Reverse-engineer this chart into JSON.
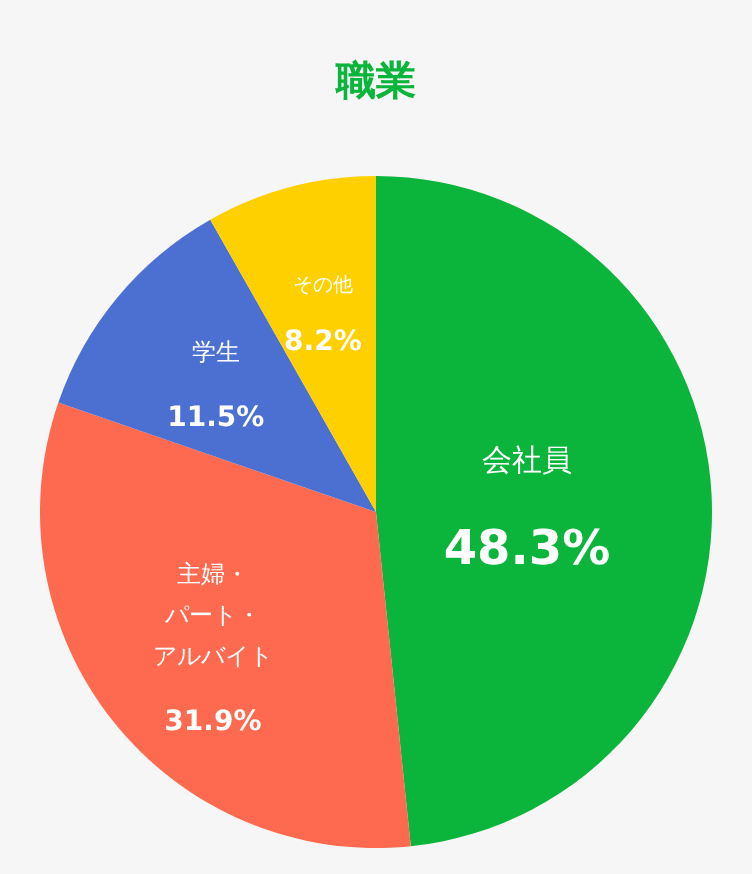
{
  "chart_data": {
    "type": "pie",
    "title": "職業",
    "categories": [
      "会社員",
      "主婦・パート・アルバイト",
      "学生",
      "その他"
    ],
    "values": [
      48.3,
      31.9,
      11.5,
      8.2
    ],
    "colors": [
      "#0bb43b",
      "#fe6a4f",
      "#4c6fd2",
      "#ffd000"
    ],
    "value_labels": [
      "48.3%",
      "31.9%",
      "11.5%",
      "8.2%"
    ]
  }
}
